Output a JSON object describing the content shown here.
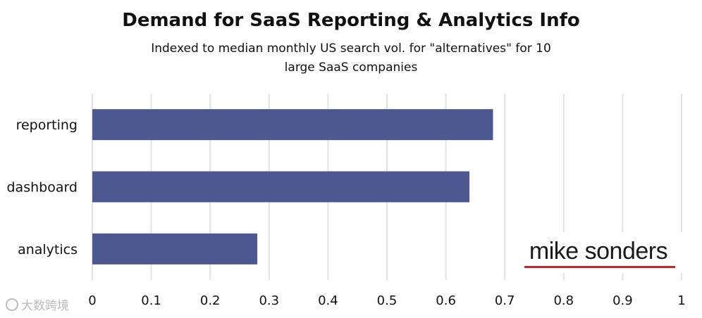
{
  "chart_data": {
    "type": "bar",
    "orientation": "horizontal",
    "title": "Demand for SaaS Reporting & Analytics Info",
    "subtitle": "Indexed to median monthly US search vol. for \"alternatives\" for 10 large SaaS companies",
    "categories": [
      "reporting",
      "dashboard",
      "analytics"
    ],
    "values": [
      0.68,
      0.64,
      0.28
    ],
    "xlim": [
      0,
      1
    ],
    "ticks": [
      0,
      0.1,
      0.2,
      0.3,
      0.4,
      0.5,
      0.6,
      0.7,
      0.8,
      0.9,
      1
    ],
    "tick_labels": [
      "0",
      "0.1",
      "0.2",
      "0.3",
      "0.4",
      "0.5",
      "0.6",
      "0.7",
      "0.8",
      "0.9",
      "1"
    ],
    "grid": true,
    "legend": "none",
    "bar_color": "#4e5890",
    "grid_color": "#dfe3e8"
  },
  "logo": {
    "text": "mike sonders",
    "underline_color": "#c0282d"
  },
  "watermark": {
    "text": "大数跨境"
  }
}
